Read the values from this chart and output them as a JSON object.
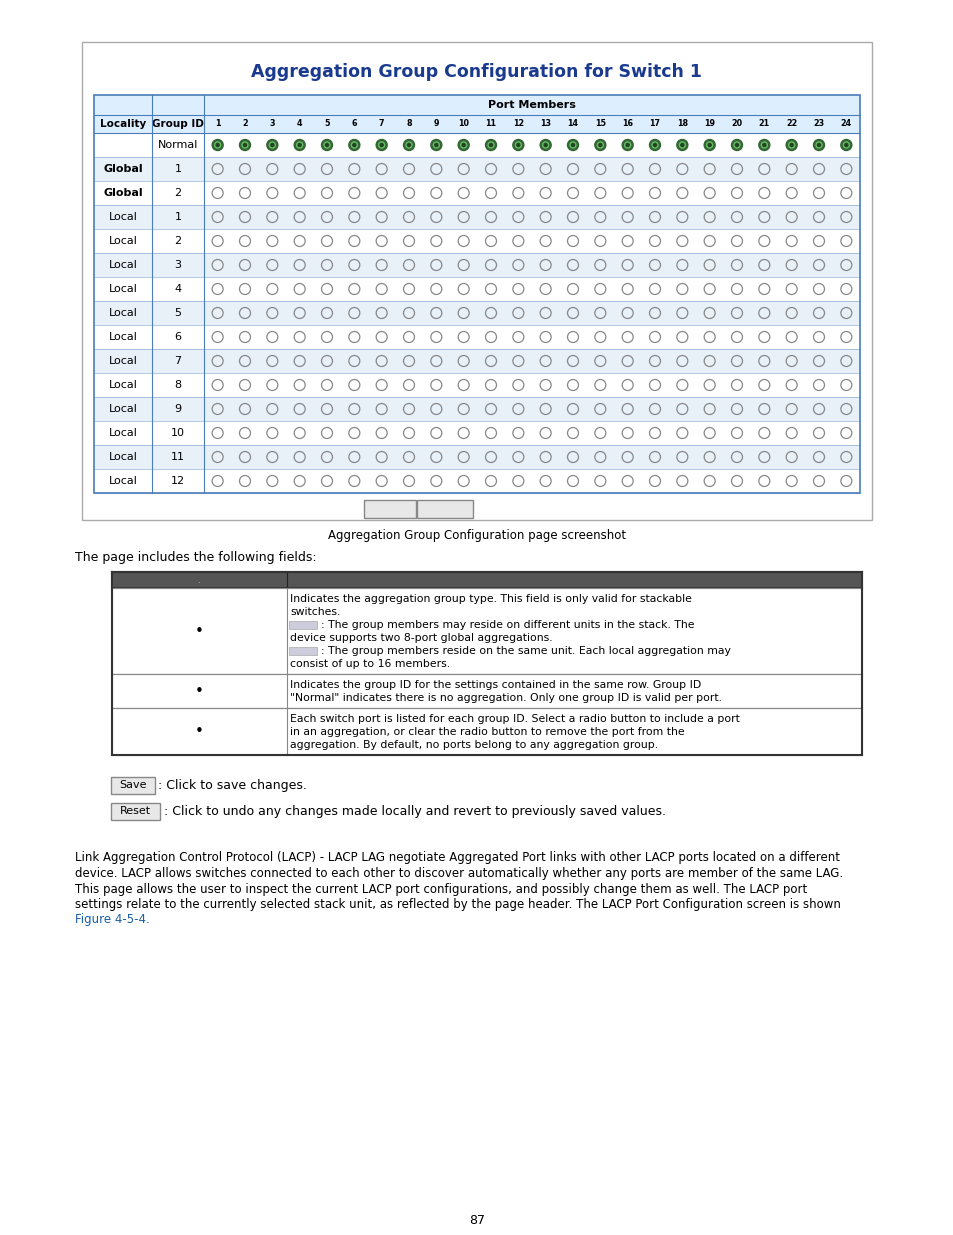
{
  "page_bg": "#ffffff",
  "title_text": "Aggregation Group Configuration for Switch 1",
  "title_color": "#1a3a8f",
  "screenshot_caption": "Aggregation Group Configuration page screenshot",
  "table_border_color": "#4a7db8",
  "table_header_bg": "#ddeeff",
  "table_row_bg_alt": "#e8f0f8",
  "table_row_bg": "#ffffff",
  "port_numbers": [
    "1",
    "2",
    "3",
    "4",
    "5",
    "6",
    "7",
    "8",
    "9",
    "10",
    "11",
    "12",
    "13",
    "14",
    "15",
    "16",
    "17",
    "18",
    "19",
    "20",
    "21",
    "22",
    "23",
    "24"
  ],
  "rows": [
    {
      "locality": "",
      "group_id": "Normal",
      "selected": true,
      "bold": false
    },
    {
      "locality": "Global",
      "group_id": "1",
      "selected": false,
      "bold": true
    },
    {
      "locality": "Global",
      "group_id": "2",
      "selected": false,
      "bold": true
    },
    {
      "locality": "Local",
      "group_id": "1",
      "selected": false,
      "bold": false
    },
    {
      "locality": "Local",
      "group_id": "2",
      "selected": false,
      "bold": false
    },
    {
      "locality": "Local",
      "group_id": "3",
      "selected": false,
      "bold": false
    },
    {
      "locality": "Local",
      "group_id": "4",
      "selected": false,
      "bold": false
    },
    {
      "locality": "Local",
      "group_id": "5",
      "selected": false,
      "bold": false
    },
    {
      "locality": "Local",
      "group_id": "6",
      "selected": false,
      "bold": false
    },
    {
      "locality": "Local",
      "group_id": "7",
      "selected": false,
      "bold": false
    },
    {
      "locality": "Local",
      "group_id": "8",
      "selected": false,
      "bold": false
    },
    {
      "locality": "Local",
      "group_id": "9",
      "selected": false,
      "bold": false
    },
    {
      "locality": "Local",
      "group_id": "10",
      "selected": false,
      "bold": false
    },
    {
      "locality": "Local",
      "group_id": "11",
      "selected": false,
      "bold": false
    },
    {
      "locality": "Local",
      "group_id": "12",
      "selected": false,
      "bold": false
    }
  ],
  "save_reset_caption1": ": Click to save changes.",
  "save_reset_caption2": ": Click to undo any changes made locally and revert to previously saved values.",
  "description_text": "Link Aggregation Control Protocol (LACP) - LACP LAG negotiate Aggregated Port links with other LACP ports located on a different\ndevice. LACP allows switches connected to each other to discover automatically whether any ports are member of the same LAG.\nThis page allows the user to inspect the current LACP port configurations, and possibly change them as well. The LACP port\nsettings relate to the currently selected stack unit, as reflected by the page header. The LACP Port Configuration screen is shown\nFigure 4-5-4.",
  "figure_link": "Figure 4-5-4.",
  "page_number": "87",
  "fields_header": "The page includes the following fields:",
  "t2_row0_col1": ".",
  "t2_row1_col2_lines": [
    "Indicates the aggregation group type. This field is only valid for stackable",
    "switches.",
    "GLOBAL_BOX: The group members may reside on different units in the stack. The",
    "device supports two 8-port global aggregations.",
    "LOCAL_BOX: The group members reside on the same unit. Each local aggregation may",
    "consist of up to 16 members."
  ],
  "t2_row2_col2_lines": [
    "Indicates the group ID for the settings contained in the same row. Group ID",
    "\"Normal\" indicates there is no aggregation. Only one group ID is valid per port."
  ],
  "t2_row3_col2_lines": [
    "Each switch port is listed for each group ID. Select a radio button to include a port",
    "in an aggregation, or clear the radio button to remove the port from the",
    "aggregation. By default, no ports belong to any aggregation group."
  ]
}
